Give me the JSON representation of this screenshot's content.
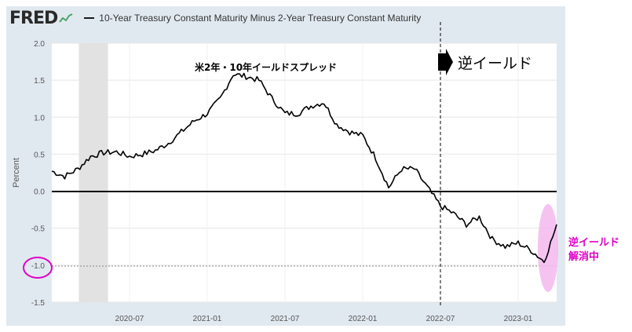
{
  "header": {
    "logo": "FRED",
    "series_title": "10-Year Treasury Constant Maturity Minus 2-Year Treasury Constant Maturity"
  },
  "chart_data": {
    "type": "line",
    "title": "10-Year Treasury Constant Maturity Minus 2-Year Treasury Constant Maturity",
    "xlabel": "",
    "ylabel": "Percent",
    "ylim": [
      -1.5,
      2.0
    ],
    "yticks": [
      "2.0",
      "1.5",
      "1.0",
      "0.5",
      "0.0",
      "-0.5",
      "-1.0",
      "-1.5"
    ],
    "xtick_labels": [
      "2020-07",
      "2021-01",
      "2021-07",
      "2022-01",
      "2022-07",
      "2023-01"
    ],
    "grid": true,
    "recession_shading": {
      "start": "2020-02",
      "end": "2020-04"
    },
    "series": [
      {
        "x": [
          "2020-01",
          "2020-02",
          "2020-03",
          "2020-04",
          "2020-05",
          "2020-06",
          "2020-07",
          "2020-08",
          "2020-09",
          "2020-10",
          "2020-11",
          "2020-12",
          "2021-01",
          "2021-02",
          "2021-03",
          "2021-04",
          "2021-05",
          "2021-06",
          "2021-07",
          "2021-08",
          "2021-09",
          "2021-10",
          "2021-11",
          "2021-12",
          "2022-01",
          "2022-02",
          "2022-03",
          "2022-04",
          "2022-05",
          "2022-06",
          "2022-07",
          "2022-08",
          "2022-09",
          "2022-10",
          "2022-11",
          "2022-12",
          "2023-01",
          "2023-02",
          "2023-03",
          "2023-04"
        ],
        "y": [
          0.27,
          0.2,
          0.3,
          0.47,
          0.52,
          0.53,
          0.47,
          0.5,
          0.55,
          0.65,
          0.8,
          0.95,
          1.05,
          1.25,
          1.58,
          1.55,
          1.5,
          1.25,
          1.05,
          1.05,
          1.15,
          1.2,
          0.9,
          0.8,
          0.75,
          0.45,
          0.05,
          0.3,
          0.3,
          0.05,
          -0.2,
          -0.3,
          -0.45,
          -0.35,
          -0.65,
          -0.75,
          -0.7,
          -0.8,
          -0.95,
          -0.45
        ]
      }
    ],
    "annotations": {
      "spread_label": "米2年・10年イールドスプレッド",
      "inversion_label": "逆イールド",
      "resolution_label_line1": "逆イールド",
      "resolution_label_line2": "解消中",
      "inversion_start": "2022-07"
    },
    "colors": {
      "line": "#000000",
      "accent": "#e000c8",
      "highlight": "#f5b8ee",
      "recession": "#e2e2e2"
    }
  }
}
